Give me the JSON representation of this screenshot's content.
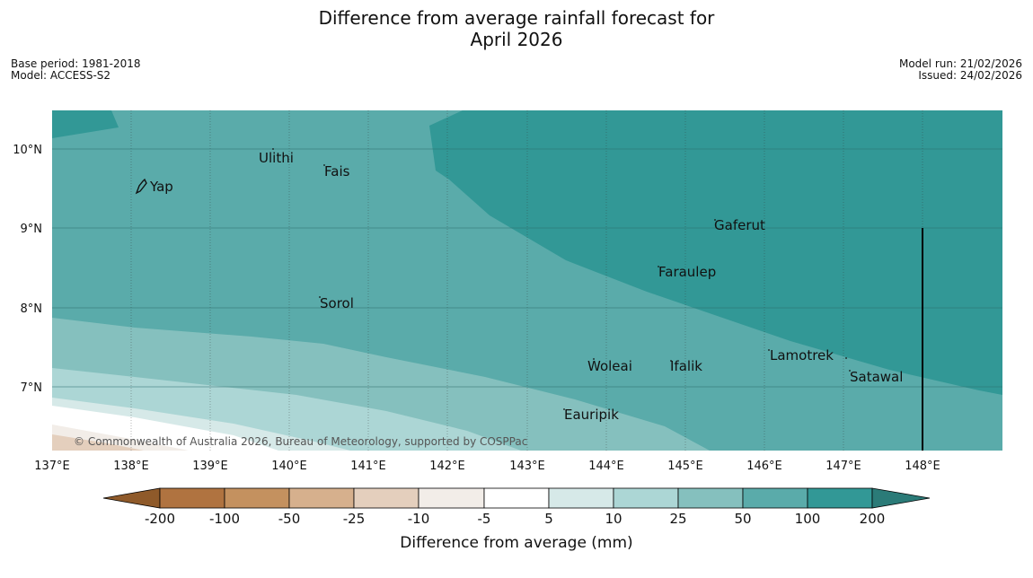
{
  "title": {
    "line1": "Difference from average rainfall forecast for",
    "line2": "April 2026"
  },
  "meta": {
    "base_period": "Base period: 1981-2018",
    "model": "Model: ACCESS-S2",
    "model_run": "Model run: 21/02/2026",
    "issued": "Issued: 24/02/2026"
  },
  "map": {
    "lon_ticks": [
      "137°E",
      "138°E",
      "139°E",
      "140°E",
      "141°E",
      "142°E",
      "143°E",
      "144°E",
      "145°E",
      "146°E",
      "147°E",
      "148°E"
    ],
    "lat_ticks": [
      "10°N",
      "9°N",
      "8°N",
      "7°N"
    ],
    "places": [
      {
        "name": "Ulithi",
        "lon": 139.75,
        "lat": 9.9
      },
      {
        "name": "Fais",
        "lon": 140.55,
        "lat": 9.75
      },
      {
        "name": "Yap",
        "lon": 138.15,
        "lat": 9.5
      },
      {
        "name": "Gaferut",
        "lon": 145.35,
        "lat": 9.05
      },
      {
        "name": "Faraulep",
        "lon": 144.65,
        "lat": 8.45
      },
      {
        "name": "Sorol",
        "lon": 140.4,
        "lat": 8.05
      },
      {
        "name": "Lamotrek",
        "lon": 146.05,
        "lat": 7.4
      },
      {
        "name": "Woleai",
        "lon": 143.9,
        "lat": 7.3
      },
      {
        "name": "Ifalik",
        "lon": 144.8,
        "lat": 7.3
      },
      {
        "name": "Satawal",
        "lon": 147.1,
        "lat": 7.15
      },
      {
        "name": "Eauripik",
        "lon": 143.3,
        "lat": 6.7
      }
    ],
    "copyright": "© Commonwealth of Australia 2026, Bureau of Meteorology, supported by COSPPac"
  },
  "colorbar": {
    "labels": [
      "-200",
      "-100",
      "-50",
      "-25",
      "-10",
      "-5",
      "5",
      "10",
      "25",
      "50",
      "100",
      "200"
    ],
    "colors": [
      "#8f5a2a",
      "#b07340",
      "#c4915f",
      "#d6b08d",
      "#e4cfbd",
      "#f2ede8",
      "#ffffff",
      "#d6e9e8",
      "#acd6d5",
      "#85c0be",
      "#5aabaa",
      "#329896",
      "#2b7b78"
    ],
    "title": "Difference from average (mm)"
  }
}
